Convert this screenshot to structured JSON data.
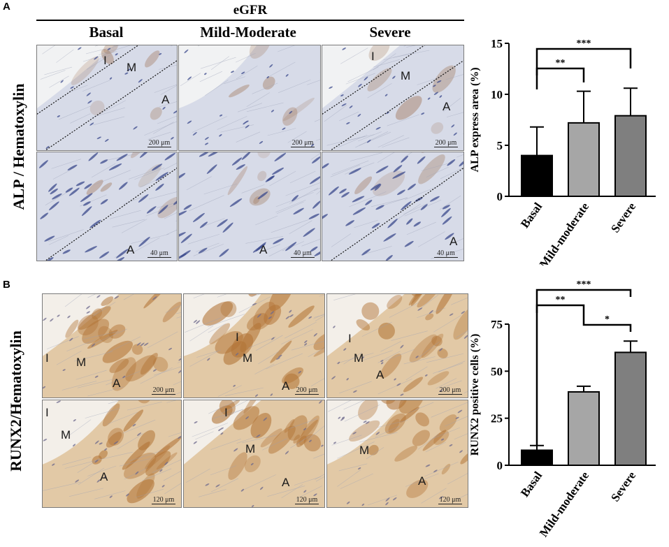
{
  "panels": [
    {
      "letter": "A",
      "group_label": "eGFR",
      "columns": [
        "Basal",
        "Mild-Moderate",
        "Severe"
      ],
      "row_label": "ALP / Hematoxylin",
      "images": [
        {
          "labels": [
            "I",
            "M",
            "A"
          ],
          "scale": "200 μm"
        },
        {
          "labels": [],
          "scale": "200 μm"
        },
        {
          "labels": [
            "I",
            "M",
            "A"
          ],
          "scale": "200 μm"
        },
        {
          "labels": [
            "A"
          ],
          "scale": "40 μm"
        },
        {
          "labels": [
            "A"
          ],
          "scale": "40 μm"
        },
        {
          "labels": [
            "A"
          ],
          "scale": "40 μm"
        }
      ]
    },
    {
      "letter": "B",
      "row_label": "RUNX2/Hematoxylin",
      "images": [
        {
          "labels": [
            "I",
            "M",
            "A"
          ],
          "scale": "200 μm"
        },
        {
          "labels": [
            "I",
            "M",
            "A"
          ],
          "scale": "200 μm"
        },
        {
          "labels": [
            "I",
            "M",
            "A"
          ],
          "scale": "200 μm"
        },
        {
          "labels": [
            "I",
            "M",
            "A"
          ],
          "scale": "120 μm"
        },
        {
          "labels": [
            "I",
            "M",
            "A"
          ],
          "scale": "120 μm"
        },
        {
          "labels": [
            "M",
            "A"
          ],
          "scale": "120 μm"
        }
      ]
    }
  ],
  "colors": {
    "alp_tissue": "#d7dbe8",
    "alp_nuclei": "#3b4a8c",
    "runx2_tissue": "#e2c9a6",
    "runx2_stain": "#b27436",
    "bar_basal": "#000000",
    "bar_mild": "#a6a6a6",
    "bar_severe": "#7f7f7f"
  },
  "chart_data": [
    {
      "type": "bar",
      "title": "",
      "xlabel": "",
      "ylabel": "ALP express area (%)",
      "categories": [
        "Basal",
        "Mild-moderate",
        "Severe"
      ],
      "values": [
        4.0,
        7.2,
        7.9
      ],
      "errors": [
        2.8,
        3.1,
        2.7
      ],
      "ylim": [
        0,
        15
      ],
      "yticks": [
        "0",
        "5",
        "10",
        "15"
      ],
      "significance": [
        {
          "from": 0,
          "to": 1,
          "label": "**"
        },
        {
          "from": 0,
          "to": 2,
          "label": "***"
        }
      ]
    },
    {
      "type": "bar",
      "title": "",
      "xlabel": "",
      "ylabel": "RUNX2 positive cells (%)",
      "categories": [
        "Basal",
        "Mild-moderate",
        "Severe"
      ],
      "values": [
        8,
        39,
        60
      ],
      "errors": [
        2.5,
        3,
        6
      ],
      "ylim": [
        0,
        75
      ],
      "yticks": [
        "0",
        "25",
        "50",
        "75"
      ],
      "significance": [
        {
          "from": 0,
          "to": 1,
          "label": "**"
        },
        {
          "from": 1,
          "to": 2,
          "label": "*"
        },
        {
          "from": 0,
          "to": 2,
          "label": "***"
        }
      ]
    }
  ]
}
